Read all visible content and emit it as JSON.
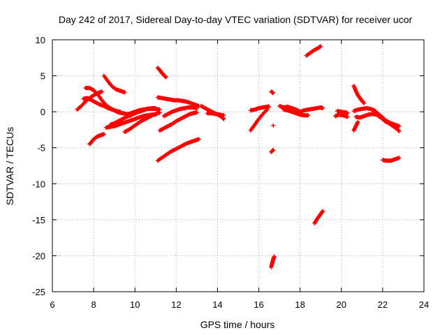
{
  "chart_data": {
    "type": "scatter",
    "title": "Day 242 of 2017, Sidereal Day-to-day VTEC variation (SDTVAR) for receiver ucor",
    "xlabel": "GPS time / hours",
    "ylabel": "SDTVAR / TECUs",
    "xlim": [
      6,
      24
    ],
    "ylim": [
      -25,
      10
    ],
    "xticks": [
      "6",
      "8",
      "10",
      "12",
      "14",
      "16",
      "18",
      "20",
      "22",
      "24"
    ],
    "yticks": [
      "-25",
      "-20",
      "-15",
      "-10",
      "-5",
      "0",
      "5",
      "10"
    ],
    "grid": true,
    "marker": "+",
    "color": "#ff0000",
    "tracks": [
      {
        "name": "track-1",
        "x": [
          7.2,
          7.4,
          7.6,
          7.8,
          8.0,
          8.2,
          8.4
        ],
        "y": [
          0.3,
          0.8,
          1.4,
          1.9,
          2.3,
          2.6,
          2.8
        ]
      },
      {
        "name": "track-2",
        "x": [
          7.6,
          7.8,
          8.0,
          8.2,
          8.4,
          8.6,
          8.8,
          9.0,
          9.2,
          9.4,
          9.6
        ],
        "y": [
          3.3,
          3.3,
          3.0,
          2.4,
          1.6,
          0.9,
          0.5,
          0.2,
          -0.1,
          -0.2,
          -0.3
        ]
      },
      {
        "name": "track-3",
        "x": [
          7.5,
          7.7,
          7.9,
          8.1,
          8.3,
          8.5,
          8.7,
          8.9,
          9.1,
          9.3
        ],
        "y": [
          1.8,
          1.9,
          1.6,
          1.3,
          1.0,
          0.8,
          0.5,
          0.3,
          0.1,
          0.0
        ]
      },
      {
        "name": "track-4",
        "x": [
          8.5,
          8.7,
          8.9,
          9.1,
          9.3,
          9.5
        ],
        "y": [
          5.0,
          4.2,
          3.5,
          3.1,
          2.9,
          2.7
        ]
      },
      {
        "name": "track-5",
        "x": [
          7.8,
          7.9,
          8.0,
          8.2,
          8.4,
          8.5
        ],
        "y": [
          -4.5,
          -4.2,
          -3.8,
          -3.4,
          -3.2,
          -3.1
        ]
      },
      {
        "name": "track-6",
        "x": [
          8.6,
          8.8,
          9.0,
          9.2,
          9.4,
          9.6,
          9.8,
          10.0,
          10.2,
          10.4,
          10.6,
          10.8,
          11.0
        ],
        "y": [
          -2.2,
          -2.1,
          -2.0,
          -1.8,
          -1.6,
          -1.4,
          -1.2,
          -1.0,
          -0.8,
          -0.6,
          -0.5,
          -0.4,
          -0.4
        ]
      },
      {
        "name": "track-7",
        "x": [
          9.5,
          9.7,
          9.9,
          10.1,
          10.3,
          10.5,
          10.7,
          10.9,
          11.1,
          11.2
        ],
        "y": [
          -2.8,
          -2.5,
          -2.1,
          -1.7,
          -1.3,
          -1.0,
          -0.7,
          -0.4,
          -0.2,
          -0.1
        ]
      },
      {
        "name": "track-8",
        "x": [
          8.8,
          9.0,
          9.2,
          9.4,
          9.6,
          9.8,
          10.0,
          10.2,
          10.4,
          10.6,
          10.8,
          11.0
        ],
        "y": [
          -1.8,
          -1.6,
          -1.3,
          -1.0,
          -0.7,
          -0.5,
          -0.2,
          0.0,
          0.2,
          0.4,
          0.5,
          0.5
        ]
      },
      {
        "name": "track-9",
        "x": [
          9.6,
          9.8,
          10.0,
          10.2,
          10.4,
          10.6,
          10.8,
          11.0,
          11.2
        ],
        "y": [
          -0.4,
          -0.2,
          0.0,
          0.2,
          0.3,
          0.4,
          0.4,
          0.4,
          0.3
        ]
      },
      {
        "name": "track-10",
        "x": [
          11.1,
          11.2,
          11.3,
          11.4,
          11.5
        ],
        "y": [
          6.1,
          5.8,
          5.4,
          5.1,
          4.8
        ]
      },
      {
        "name": "track-11",
        "x": [
          11.1,
          11.3,
          11.5,
          11.7,
          11.9,
          12.1,
          12.3,
          12.5,
          12.7,
          12.9,
          13.1
        ],
        "y": [
          2.0,
          1.9,
          1.8,
          1.7,
          1.6,
          1.6,
          1.5,
          1.4,
          1.2,
          1.0,
          0.8
        ]
      },
      {
        "name": "track-12",
        "x": [
          11.2,
          11.4,
          11.6,
          11.8,
          12.0,
          12.2,
          12.4,
          12.6,
          12.8,
          13.0
        ],
        "y": [
          -2.6,
          -2.3,
          -2.0,
          -1.7,
          -1.3,
          -1.0,
          -0.7,
          -0.4,
          -0.2,
          -0.1
        ]
      },
      {
        "name": "track-13",
        "x": [
          11.4,
          11.6,
          11.8,
          12.0,
          12.2,
          12.4,
          12.6,
          12.8,
          13.0
        ],
        "y": [
          -0.6,
          -0.3,
          0.0,
          0.2,
          0.4,
          0.5,
          0.6,
          0.6,
          0.5
        ]
      },
      {
        "name": "track-14",
        "x": [
          11.1,
          11.3,
          11.5,
          11.7,
          11.9,
          12.1,
          12.3,
          12.5,
          12.7,
          12.9,
          13.1
        ],
        "y": [
          -6.8,
          -6.4,
          -6.0,
          -5.6,
          -5.3,
          -5.0,
          -4.7,
          -4.4,
          -4.2,
          -4.0,
          -3.8
        ]
      },
      {
        "name": "track-15",
        "x": [
          13.2,
          13.4,
          13.6,
          13.8,
          14.0,
          14.2,
          14.3
        ],
        "y": [
          0.8,
          0.5,
          0.2,
          -0.1,
          -0.4,
          -0.7,
          -1.0
        ]
      },
      {
        "name": "track-16",
        "x": [
          13.5,
          13.7,
          13.9,
          14.1,
          14.3
        ],
        "y": [
          -0.2,
          -0.2,
          -0.3,
          -0.4,
          -0.5
        ]
      },
      {
        "name": "track-17",
        "x": [
          15.6,
          15.8,
          16.0,
          16.2,
          16.4,
          16.5
        ],
        "y": [
          0.2,
          0.3,
          0.5,
          0.6,
          0.7,
          0.7
        ]
      },
      {
        "name": "track-18",
        "x": [
          15.6,
          15.8,
          16.0,
          16.2,
          16.4
        ],
        "y": [
          -2.6,
          -1.8,
          -1.0,
          -0.3,
          0.3
        ]
      },
      {
        "name": "track-19",
        "x": [
          16.6,
          16.7
        ],
        "y": [
          2.8,
          2.6
        ]
      },
      {
        "name": "track-20",
        "x": [
          16.7
        ],
        "y": [
          -1.9
        ]
      },
      {
        "name": "track-21",
        "x": [
          16.6,
          16.7
        ],
        "y": [
          -5.6,
          -5.3
        ]
      },
      {
        "name": "track-22",
        "x": [
          16.6,
          16.65,
          16.7,
          16.75
        ],
        "y": [
          -21.6,
          -21.0,
          -20.5,
          -20.1
        ]
      },
      {
        "name": "track-23",
        "x": [
          17.0,
          17.2,
          17.4,
          17.6,
          17.8,
          18.0,
          18.2,
          18.4,
          18.6,
          18.8,
          19.0,
          19.1
        ],
        "y": [
          0.8,
          0.6,
          0.7,
          0.5,
          0.3,
          0.0,
          0.2,
          0.3,
          0.4,
          0.5,
          0.6,
          0.5
        ]
      },
      {
        "name": "track-24",
        "x": [
          17.2,
          17.4,
          17.6,
          17.8,
          18.0,
          18.2,
          18.4
        ],
        "y": [
          0.3,
          0.2,
          0.0,
          -0.2,
          -0.4,
          -0.5,
          -0.5
        ]
      },
      {
        "name": "track-25",
        "x": [
          18.3,
          18.5,
          18.7,
          18.9,
          19.0
        ],
        "y": [
          7.8,
          8.2,
          8.6,
          8.9,
          9.1
        ]
      },
      {
        "name": "track-26",
        "x": [
          18.7,
          18.8,
          18.9,
          19.0,
          19.1
        ],
        "y": [
          -15.5,
          -15.0,
          -14.6,
          -14.2,
          -13.8
        ]
      },
      {
        "name": "track-27",
        "x": [
          19.7,
          19.9,
          20.1,
          20.3
        ],
        "y": [
          -0.6,
          -0.4,
          -0.5,
          -0.7
        ]
      },
      {
        "name": "track-28",
        "x": [
          19.8,
          20.0,
          20.2,
          20.3
        ],
        "y": [
          0.1,
          0.0,
          -0.1,
          -0.2
        ]
      },
      {
        "name": "track-29",
        "x": [
          20.6,
          20.7,
          20.8,
          20.9,
          21.0,
          21.1
        ],
        "y": [
          3.6,
          2.9,
          2.3,
          1.9,
          1.5,
          1.2
        ]
      },
      {
        "name": "track-30",
        "x": [
          20.6,
          20.8,
          21.0,
          21.2,
          21.4,
          21.6,
          21.8,
          22.0,
          22.2,
          22.4,
          22.6,
          22.8
        ],
        "y": [
          0.1,
          0.3,
          0.4,
          0.5,
          0.4,
          0.2,
          -0.3,
          -0.8,
          -1.3,
          -1.6,
          -1.8,
          -2.0
        ]
      },
      {
        "name": "track-31",
        "x": [
          20.7,
          20.9,
          21.1,
          21.3,
          21.5,
          21.7,
          21.9,
          22.1,
          22.3,
          22.5,
          22.7,
          22.8
        ],
        "y": [
          -0.7,
          -0.8,
          -0.6,
          -0.4,
          -0.3,
          -0.4,
          -0.8,
          -1.3,
          -1.6,
          -2.0,
          -2.4,
          -2.7
        ]
      },
      {
        "name": "track-32",
        "x": [
          20.6,
          20.7,
          20.8
        ],
        "y": [
          -2.6,
          -2.0,
          -1.4
        ]
      },
      {
        "name": "track-33",
        "x": [
          22.0,
          22.2,
          22.4,
          22.6,
          22.8
        ],
        "y": [
          -6.7,
          -6.8,
          -6.8,
          -6.6,
          -6.4
        ]
      }
    ]
  }
}
